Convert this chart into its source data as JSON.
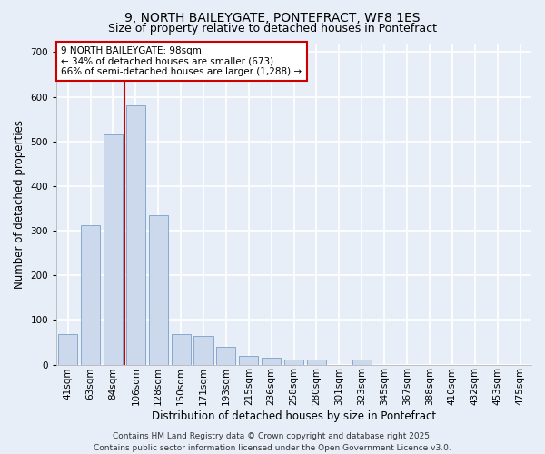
{
  "title_line1": "9, NORTH BAILEYGATE, PONTEFRACT, WF8 1ES",
  "title_line2": "Size of property relative to detached houses in Pontefract",
  "xlabel": "Distribution of detached houses by size in Pontefract",
  "ylabel": "Number of detached properties",
  "categories": [
    "41sqm",
    "63sqm",
    "84sqm",
    "106sqm",
    "128sqm",
    "150sqm",
    "171sqm",
    "193sqm",
    "215sqm",
    "236sqm",
    "258sqm",
    "280sqm",
    "301sqm",
    "323sqm",
    "345sqm",
    "367sqm",
    "388sqm",
    "410sqm",
    "432sqm",
    "453sqm",
    "475sqm"
  ],
  "values": [
    68,
    313,
    515,
    580,
    335,
    68,
    65,
    40,
    20,
    15,
    12,
    12,
    0,
    12,
    0,
    0,
    0,
    0,
    0,
    0,
    0
  ],
  "bar_color": "#ccd9ed",
  "bar_edge_color": "#7a9fc9",
  "red_line_x": 2.5,
  "ylim": [
    0,
    720
  ],
  "yticks": [
    0,
    100,
    200,
    300,
    400,
    500,
    600,
    700
  ],
  "annotation_text": "9 NORTH BAILEYGATE: 98sqm\n← 34% of detached houses are smaller (673)\n66% of semi-detached houses are larger (1,288) →",
  "annotation_box_color": "#ffffff",
  "annotation_box_edge": "#cc0000",
  "footer_line1": "Contains HM Land Registry data © Crown copyright and database right 2025.",
  "footer_line2": "Contains public sector information licensed under the Open Government Licence v3.0.",
  "bg_color": "#e8eef8",
  "plot_bg_color": "#e8eef8",
  "grid_color": "#ffffff",
  "title_fontsize": 10,
  "subtitle_fontsize": 9,
  "axis_label_fontsize": 8.5,
  "tick_fontsize": 7.5,
  "annotation_fontsize": 7.5,
  "footer_fontsize": 6.5
}
